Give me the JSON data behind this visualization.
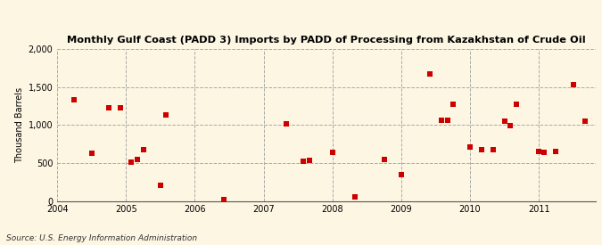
{
  "title": "Monthly Gulf Coast (PADD 3) Imports by PADD of Processing from Kazakhstan of Crude Oil",
  "ylabel": "Thousand Barrels",
  "source": "Source: U.S. Energy Information Administration",
  "background_color": "#fdf6e3",
  "marker_color": "#cc0000",
  "marker_size": 18,
  "xlim": [
    2004.0,
    2011.83
  ],
  "ylim": [
    0,
    2000
  ],
  "yticks": [
    0,
    500,
    1000,
    1500,
    2000
  ],
  "xticks": [
    2004,
    2005,
    2006,
    2007,
    2008,
    2009,
    2010,
    2011
  ],
  "data_points": [
    [
      2004.25,
      1330
    ],
    [
      2004.5,
      630
    ],
    [
      2004.75,
      1220
    ],
    [
      2004.92,
      1230
    ],
    [
      2005.08,
      510
    ],
    [
      2005.17,
      540
    ],
    [
      2005.25,
      680
    ],
    [
      2005.5,
      200
    ],
    [
      2005.58,
      1130
    ],
    [
      2006.42,
      20
    ],
    [
      2007.33,
      1020
    ],
    [
      2007.58,
      525
    ],
    [
      2007.67,
      530
    ],
    [
      2008.0,
      640
    ],
    [
      2008.33,
      55
    ],
    [
      2008.75,
      550
    ],
    [
      2009.0,
      345
    ],
    [
      2009.42,
      1670
    ],
    [
      2009.58,
      1060
    ],
    [
      2009.67,
      1060
    ],
    [
      2009.75,
      1270
    ],
    [
      2010.0,
      710
    ],
    [
      2010.17,
      670
    ],
    [
      2010.33,
      670
    ],
    [
      2010.5,
      1050
    ],
    [
      2010.58,
      990
    ],
    [
      2010.67,
      1270
    ],
    [
      2011.0,
      650
    ],
    [
      2011.08,
      640
    ],
    [
      2011.25,
      650
    ],
    [
      2011.5,
      1530
    ],
    [
      2011.67,
      1050
    ]
  ]
}
